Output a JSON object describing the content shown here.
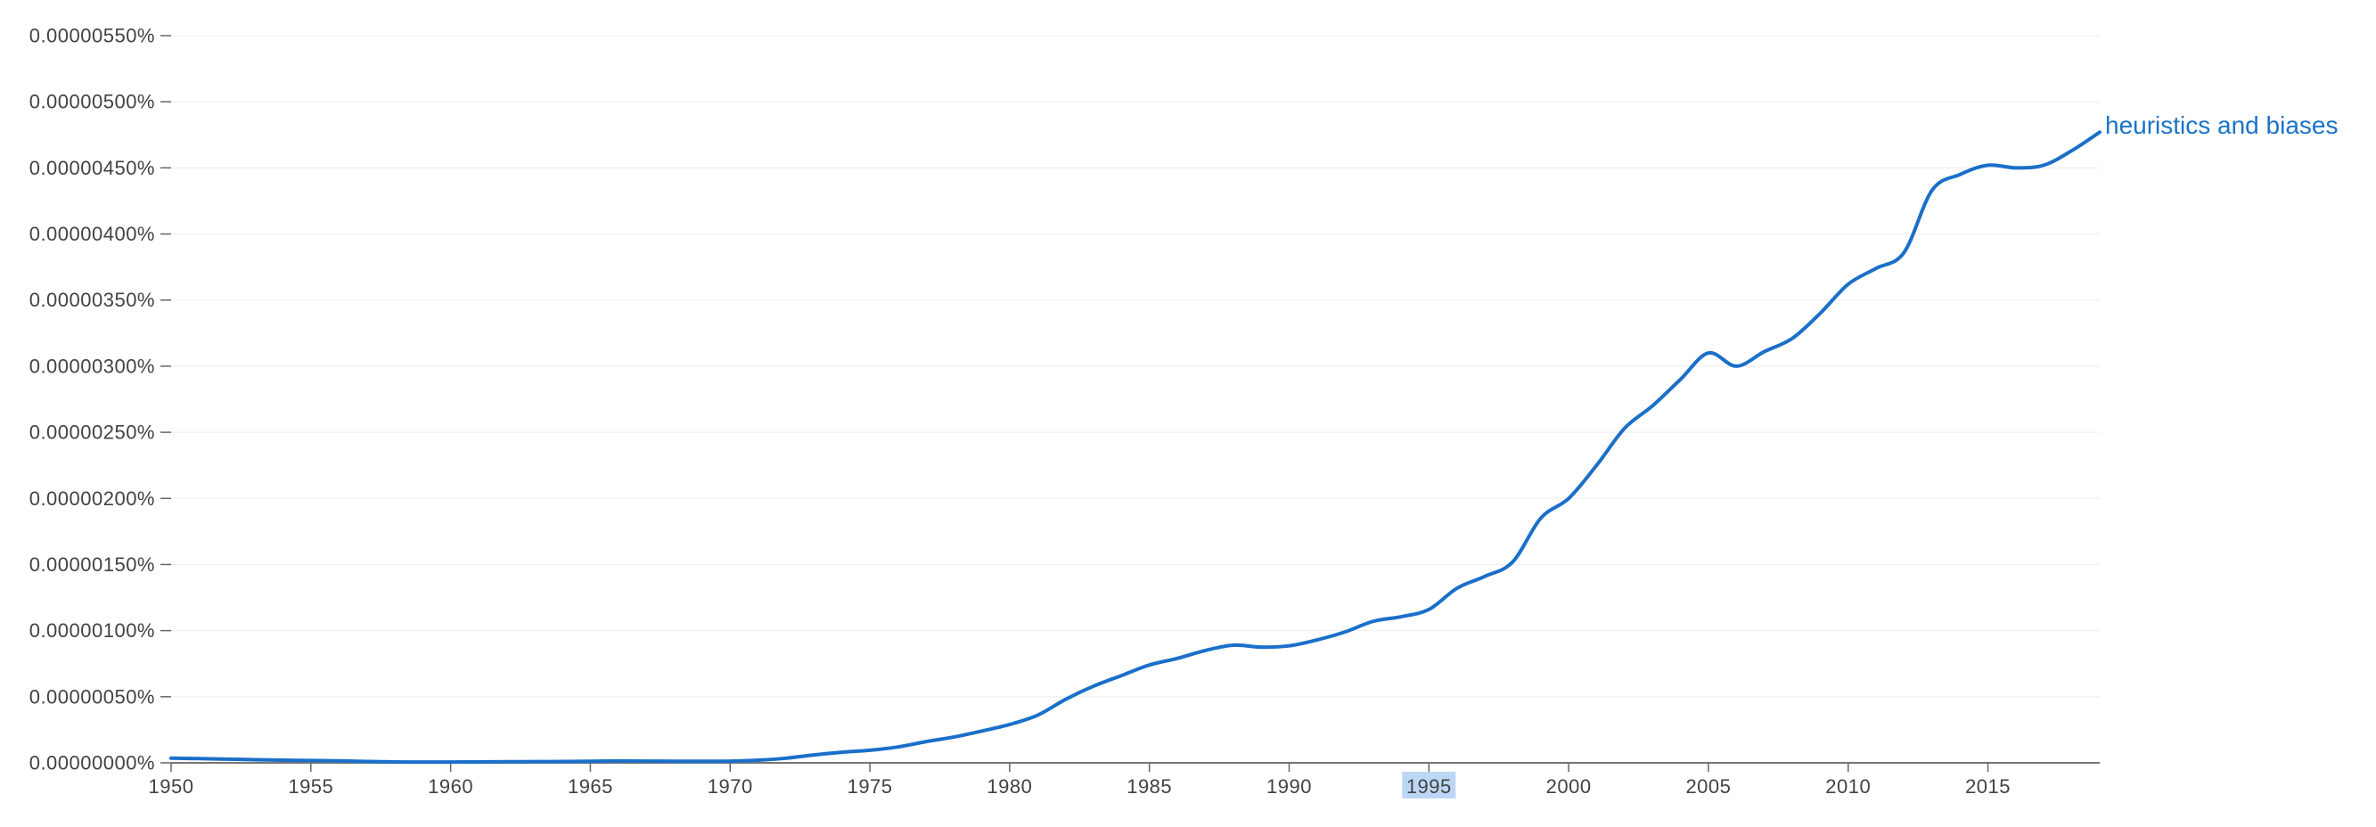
{
  "chart_data": {
    "type": "line",
    "title": "",
    "xlabel": "",
    "ylabel": "",
    "xlim": [
      1950,
      2019
    ],
    "ylim": [
      0,
      5.5e-06
    ],
    "grid": true,
    "highlighted_x_tick": "1995",
    "y_ticks": [
      {
        "value": 5.5e-06,
        "label": "0.00000550%"
      },
      {
        "value": 5e-06,
        "label": "0.00000500%"
      },
      {
        "value": 4.5e-06,
        "label": "0.00000450%"
      },
      {
        "value": 4e-06,
        "label": "0.00000400%"
      },
      {
        "value": 3.5e-06,
        "label": "0.00000350%"
      },
      {
        "value": 3e-06,
        "label": "0.00000300%"
      },
      {
        "value": 2.5e-06,
        "label": "0.00000250%"
      },
      {
        "value": 2e-06,
        "label": "0.00000200%"
      },
      {
        "value": 1.5e-06,
        "label": "0.00000150%"
      },
      {
        "value": 1e-06,
        "label": "0.00000100%"
      },
      {
        "value": 5e-07,
        "label": "0.00000050%"
      },
      {
        "value": 0.0,
        "label": "0.00000000%"
      }
    ],
    "x_ticks": [
      {
        "value": 1950,
        "label": "1950"
      },
      {
        "value": 1955,
        "label": "1955"
      },
      {
        "value": 1960,
        "label": "1960"
      },
      {
        "value": 1965,
        "label": "1965"
      },
      {
        "value": 1970,
        "label": "1970"
      },
      {
        "value": 1975,
        "label": "1975"
      },
      {
        "value": 1980,
        "label": "1980"
      },
      {
        "value": 1985,
        "label": "1985"
      },
      {
        "value": 1990,
        "label": "1990"
      },
      {
        "value": 1995,
        "label": "1995"
      },
      {
        "value": 2000,
        "label": "2000"
      },
      {
        "value": 2005,
        "label": "2005"
      },
      {
        "value": 2010,
        "label": "2010"
      },
      {
        "value": 2015,
        "label": "2015"
      }
    ],
    "series": [
      {
        "name": "heuristics and biases",
        "color": "#1a6fc9",
        "x": [
          1950,
          1951,
          1952,
          1953,
          1954,
          1955,
          1956,
          1957,
          1958,
          1959,
          1960,
          1961,
          1962,
          1963,
          1964,
          1965,
          1966,
          1967,
          1968,
          1969,
          1970,
          1971,
          1972,
          1973,
          1974,
          1975,
          1976,
          1977,
          1978,
          1979,
          1980,
          1981,
          1982,
          1983,
          1984,
          1985,
          1986,
          1987,
          1988,
          1989,
          1990,
          1991,
          1992,
          1993,
          1994,
          1995,
          1996,
          1997,
          1998,
          1999,
          2000,
          2001,
          2002,
          2003,
          2004,
          2005,
          2006,
          2007,
          2008,
          2009,
          2010,
          2011,
          2012,
          2013,
          2014,
          2015,
          2016,
          2017,
          2018,
          2019
        ],
        "values": [
          3.5e-08,
          3.2e-08,
          2.8e-08,
          2.4e-08,
          2e-08,
          1.8e-08,
          1.5e-08,
          1e-08,
          7e-09,
          6e-09,
          6e-09,
          7e-09,
          8e-09,
          9e-09,
          1e-08,
          1.2e-08,
          1.4e-08,
          1.3e-08,
          1.2e-08,
          1.2e-08,
          1.3e-08,
          2e-08,
          3.5e-08,
          6e-08,
          8e-08,
          9.5e-08,
          1.2e-07,
          1.6e-07,
          1.95e-07,
          2.4e-07,
          2.9e-07,
          3.6e-07,
          4.8e-07,
          5.8e-07,
          6.6e-07,
          7.4e-07,
          7.9e-07,
          8.5e-07,
          8.9e-07,
          8.75e-07,
          8.85e-07,
          9.3e-07,
          9.9e-07,
          1.07e-06,
          1.105e-06,
          1.16e-06,
          1.32e-06,
          1.41e-06,
          1.52e-06,
          1.85e-06,
          2e-06,
          2.25e-06,
          2.53e-06,
          2.7e-06,
          2.9e-06,
          3.1e-06,
          3e-06,
          3.11e-06,
          3.21e-06,
          3.4e-06,
          3.62e-06,
          3.74e-06,
          3.86e-06,
          4.33e-06,
          4.45e-06,
          4.52e-06,
          4.5e-06,
          4.52e-06,
          4.63e-06,
          4.77e-06
        ]
      }
    ]
  }
}
